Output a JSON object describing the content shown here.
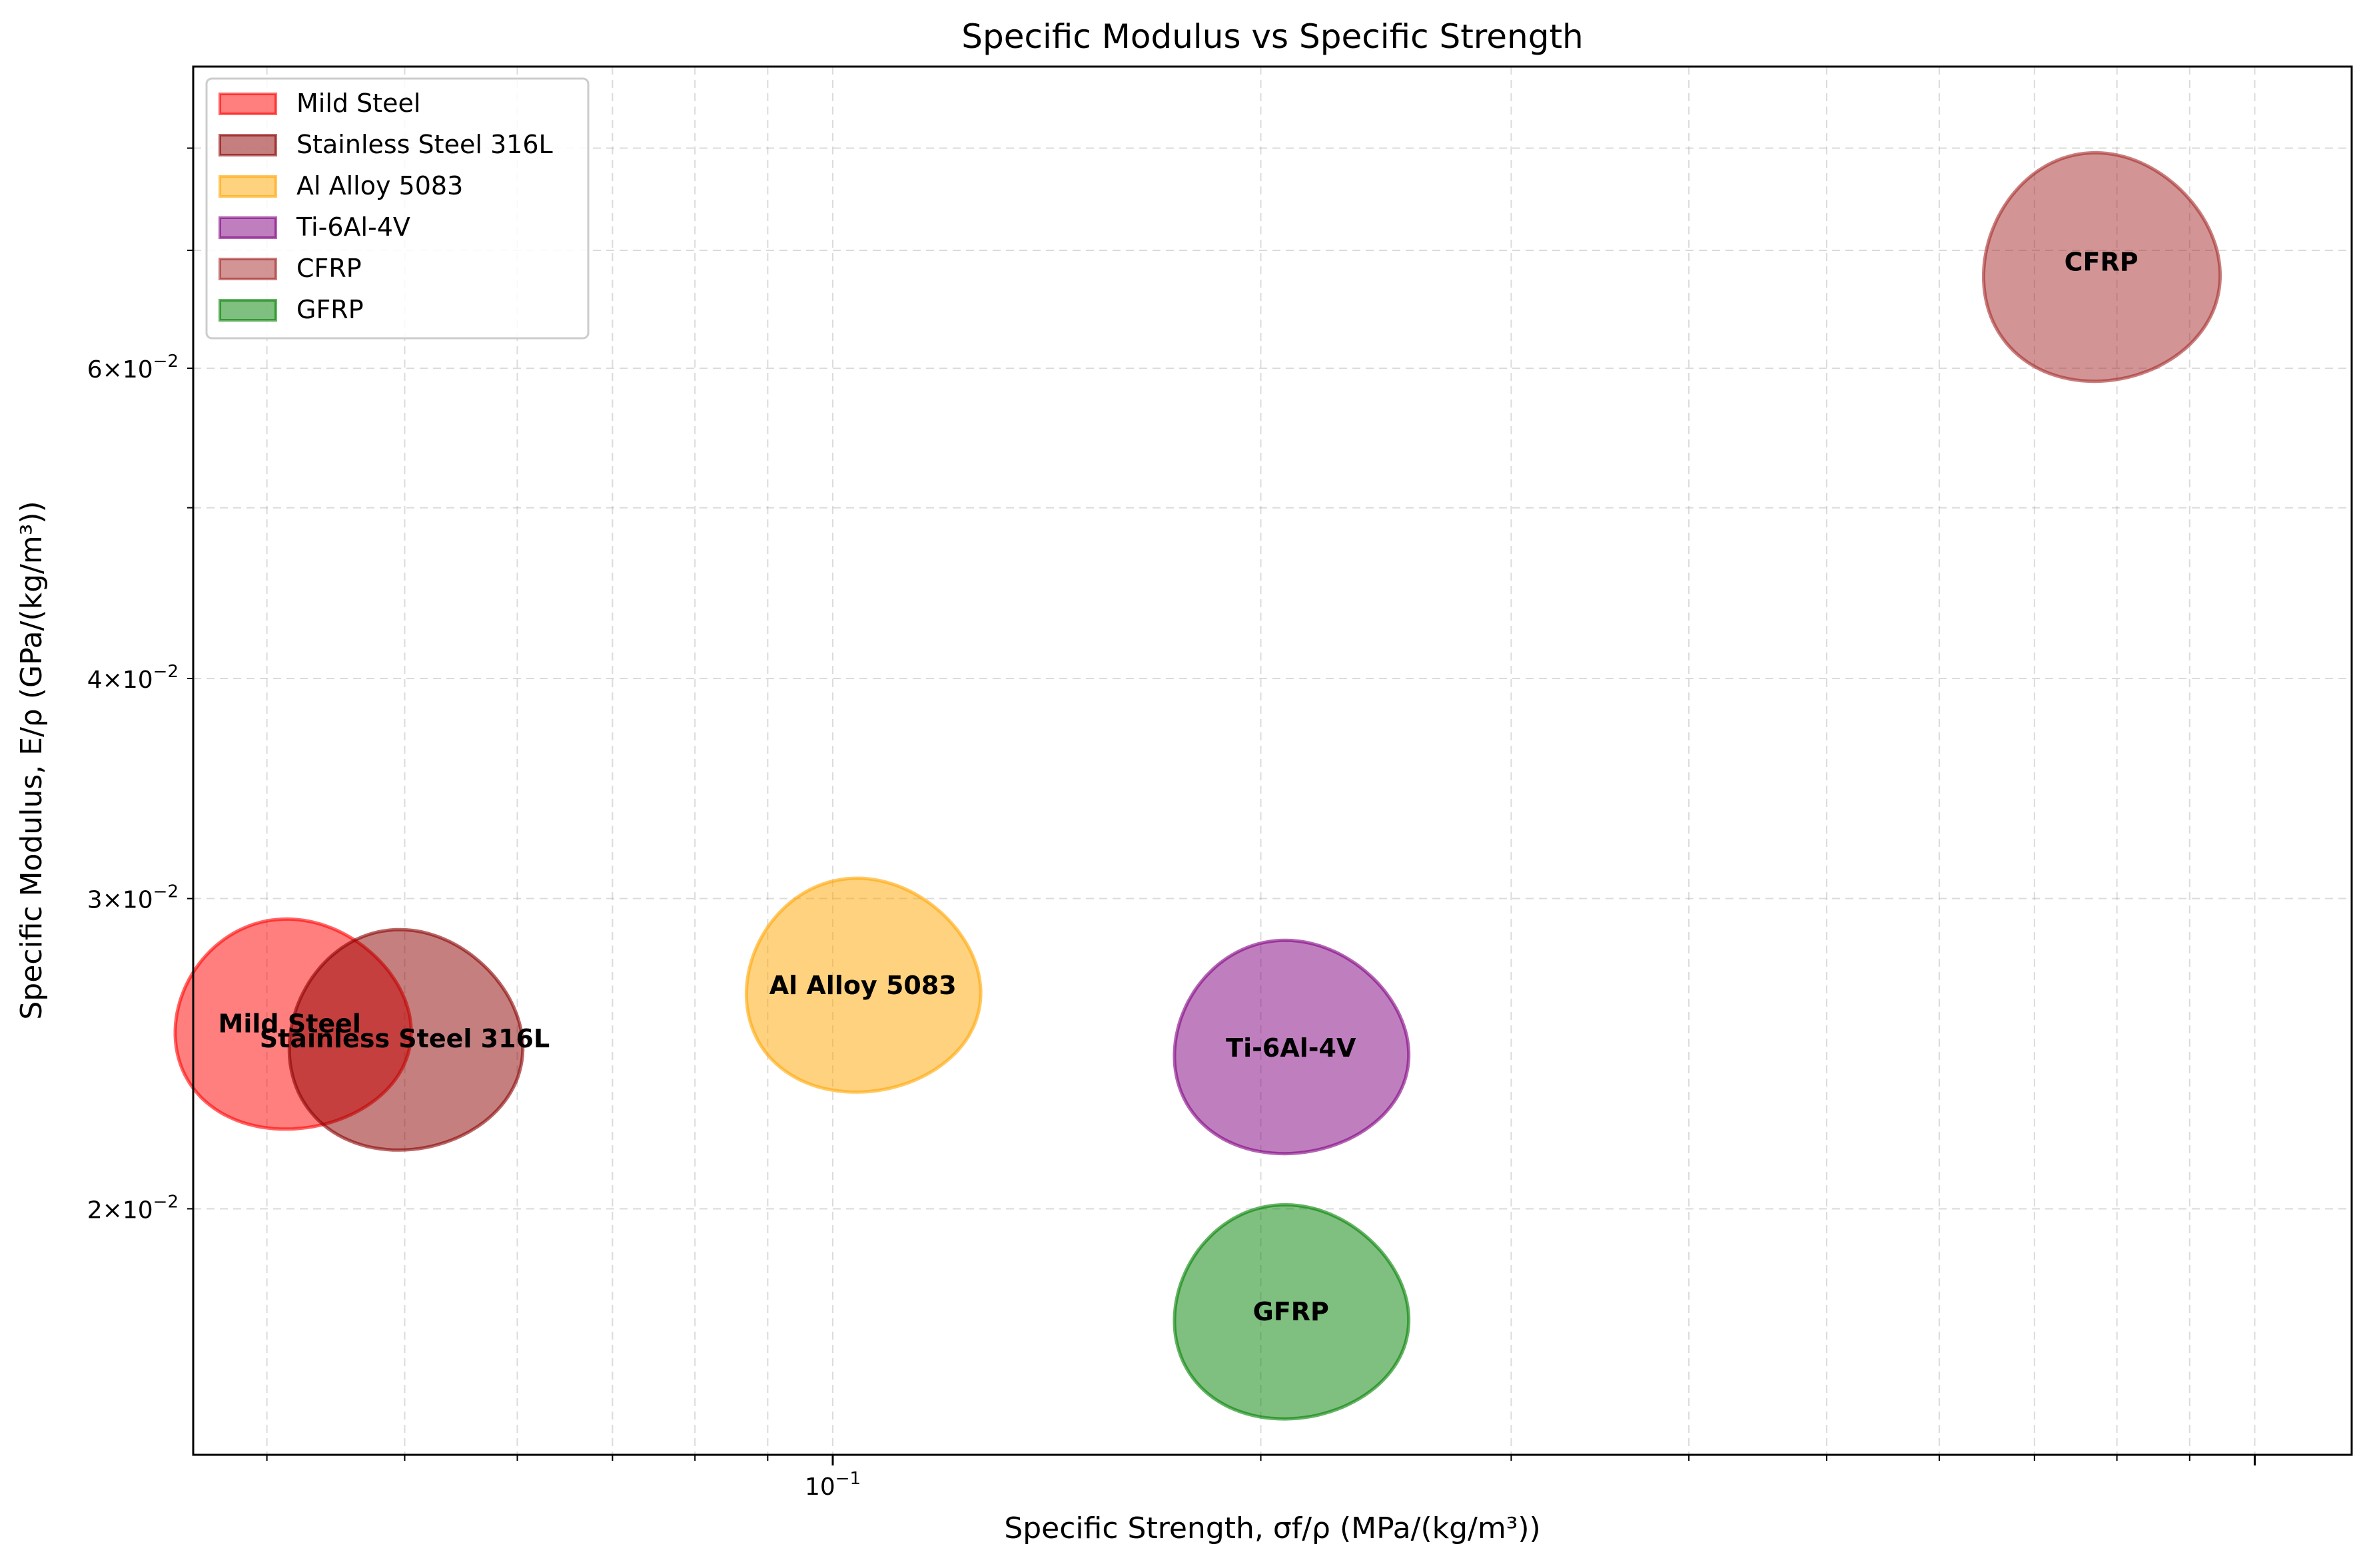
{
  "chart_data": {
    "type": "scatter",
    "title": "Specific Modulus vs Specific Strength",
    "xlabel": "Specific Strength, σf/ρ (MPa/(kg/m³))",
    "ylabel": "Specific Modulus, E/ρ (GPa/(kg/m³))",
    "xscale": "log",
    "yscale": "log",
    "xlim": [
      0.0355,
      1.17
    ],
    "ylim": [
      0.0145,
      0.089
    ],
    "grid": true,
    "legend_position": "top-left",
    "x_tick_labels": [
      {
        "value": 0.1,
        "label": "10^-1"
      }
    ],
    "y_tick_labels": [
      {
        "value": 0.02,
        "label": "2×10^-2"
      },
      {
        "value": 0.03,
        "label": "3×10^-2"
      },
      {
        "value": 0.04,
        "label": "4×10^-2"
      },
      {
        "value": 0.06,
        "label": "6×10^-2"
      }
    ],
    "series": [
      {
        "name": "Mild Steel",
        "label": "Mild Steel",
        "color": "#ff0000",
        "edge_color": "#ff0000",
        "x": 0.0415,
        "y": 0.0255,
        "x_range": [
          0.0345,
          0.0505
        ],
        "y_range": [
          0.0222,
          0.0292
        ]
      },
      {
        "name": "Stainless Steel 316L",
        "label": "Stainless Steel 316L",
        "color": "#8b0000",
        "edge_color": "#8b0000",
        "x": 0.05,
        "y": 0.025,
        "x_range": [
          0.0415,
          0.0605
        ],
        "y_range": [
          0.0216,
          0.0288
        ]
      },
      {
        "name": "Al Alloy 5083",
        "label": "Al Alloy 5083",
        "color": "#ffa500",
        "edge_color": "#ffa500",
        "x": 0.105,
        "y": 0.0268,
        "x_range": [
          0.087,
          0.127
        ],
        "y_range": [
          0.0233,
          0.0308
        ]
      },
      {
        "name": "Ti-6Al-4V",
        "label": "Ti-6Al-4V",
        "color": "#800080",
        "edge_color": "#800080",
        "x": 0.21,
        "y": 0.0247,
        "x_range": [
          0.174,
          0.254
        ],
        "y_range": [
          0.0215,
          0.0284
        ]
      },
      {
        "name": "CFRP",
        "label": "CFRP",
        "color": "#a52a2a",
        "edge_color": "#a52a2a",
        "x": 0.78,
        "y": 0.069,
        "x_range": [
          0.645,
          0.945
        ],
        "y_range": [
          0.059,
          0.0795
        ]
      },
      {
        "name": "GFRP",
        "label": "GFRP",
        "color": "#008000",
        "edge_color": "#008000",
        "x": 0.21,
        "y": 0.0175,
        "x_range": [
          0.174,
          0.254
        ],
        "y_range": [
          0.0152,
          0.0201
        ]
      }
    ]
  }
}
